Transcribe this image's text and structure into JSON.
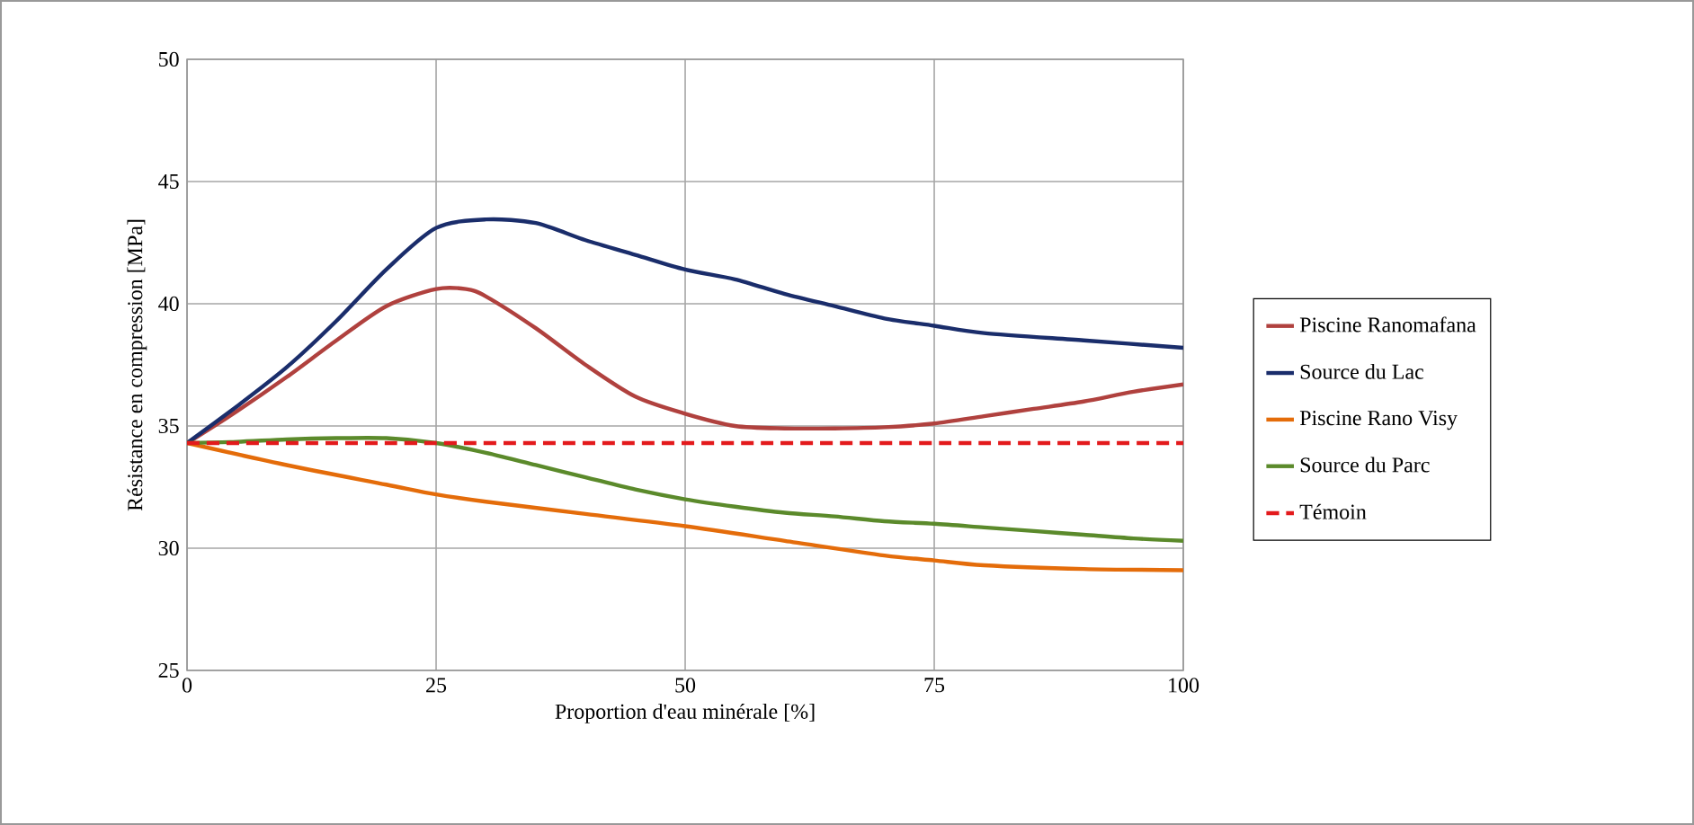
{
  "chart_data": {
    "type": "line",
    "xlabel": "Proportion d'eau minérale [%]",
    "ylabel": "Résistance en compression [MPa]",
    "xlim": [
      0,
      100
    ],
    "ylim": [
      25,
      50
    ],
    "xticks": [
      0,
      25,
      50,
      75,
      100
    ],
    "yticks": [
      25,
      30,
      35,
      40,
      45,
      50
    ],
    "grid": true,
    "legend": "right",
    "series": [
      {
        "name": "Piscine Ranomafana",
        "color": "#b0413e",
        "x": [
          0,
          5,
          10,
          15,
          20,
          25,
          28,
          30,
          35,
          40,
          45,
          50,
          55,
          60,
          65,
          70,
          75,
          80,
          85,
          90,
          95,
          100
        ],
        "values": [
          34.3,
          35.6,
          37.0,
          38.5,
          39.9,
          40.6,
          40.6,
          40.3,
          39.0,
          37.5,
          36.2,
          35.5,
          35.0,
          34.9,
          34.9,
          34.95,
          35.1,
          35.4,
          35.7,
          36.0,
          36.4,
          36.7
        ]
      },
      {
        "name": "Source du Lac",
        "color": "#1a2d6b",
        "x": [
          0,
          5,
          10,
          15,
          20,
          25,
          30,
          35,
          40,
          45,
          50,
          55,
          60,
          65,
          70,
          75,
          80,
          90,
          100
        ],
        "values": [
          34.3,
          35.8,
          37.4,
          39.3,
          41.4,
          43.1,
          43.45,
          43.3,
          42.6,
          42.0,
          41.4,
          41.0,
          40.4,
          39.9,
          39.4,
          39.1,
          38.8,
          38.5,
          38.2
        ]
      },
      {
        "name": "Piscine Rano Visy",
        "color": "#e46c0a",
        "x": [
          0,
          10,
          20,
          25,
          30,
          40,
          50,
          60,
          70,
          75,
          80,
          90,
          100
        ],
        "values": [
          34.3,
          33.4,
          32.6,
          32.2,
          31.9,
          31.4,
          30.9,
          30.3,
          29.7,
          29.5,
          29.3,
          29.15,
          29.1
        ]
      },
      {
        "name": "Source du Parc",
        "color": "#5b8a2b",
        "x": [
          0,
          5,
          10,
          15,
          20,
          25,
          30,
          35,
          40,
          45,
          50,
          55,
          60,
          65,
          70,
          75,
          80,
          85,
          90,
          95,
          100
        ],
        "values": [
          34.3,
          34.35,
          34.45,
          34.5,
          34.5,
          34.3,
          33.9,
          33.4,
          32.9,
          32.4,
          32.0,
          31.7,
          31.45,
          31.3,
          31.1,
          31.0,
          30.85,
          30.7,
          30.55,
          30.4,
          30.3
        ]
      },
      {
        "name": "Témoin",
        "color": "#e31a1c",
        "line_style": "dashed",
        "x": [
          0,
          100
        ],
        "values": [
          34.3,
          34.3
        ]
      }
    ]
  }
}
